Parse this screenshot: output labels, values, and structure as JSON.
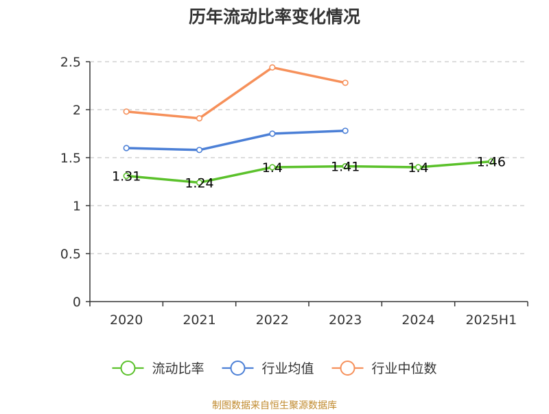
{
  "colors": {
    "axis": "#333333",
    "grid": "#c8c8c8",
    "text": "#333333",
    "source": "#c08a2e"
  },
  "source_text": "制图数据来自恒生聚源数据库",
  "chart_data": {
    "type": "line",
    "title": "历年流动比率变化情况",
    "xlabel": "",
    "ylabel": "",
    "categories": [
      "2020",
      "2021",
      "2022",
      "2023",
      "2024",
      "2025H1"
    ],
    "ylim": [
      0,
      2.5
    ],
    "yticks": [
      0,
      0.5,
      1,
      1.5,
      2,
      2.5
    ],
    "ytick_labels": [
      "0",
      "0.5",
      "1",
      "1.5",
      "2",
      "2.5"
    ],
    "grid": true,
    "legend_position": "bottom",
    "series": [
      {
        "name": "流动比率",
        "color": "#5bc12b",
        "values": [
          1.31,
          1.24,
          1.4,
          1.41,
          1.4,
          1.46
        ],
        "labels": [
          "1.31",
          "1.24",
          "1.4",
          "1.41",
          "1.4",
          "1.46"
        ]
      },
      {
        "name": "行业均值",
        "color": "#4b7fd6",
        "values": [
          1.6,
          1.58,
          1.75,
          1.78,
          null,
          null
        ]
      },
      {
        "name": "行业中位数",
        "color": "#f6905a",
        "values": [
          1.98,
          1.91,
          2.44,
          2.28,
          null,
          null
        ]
      }
    ]
  }
}
